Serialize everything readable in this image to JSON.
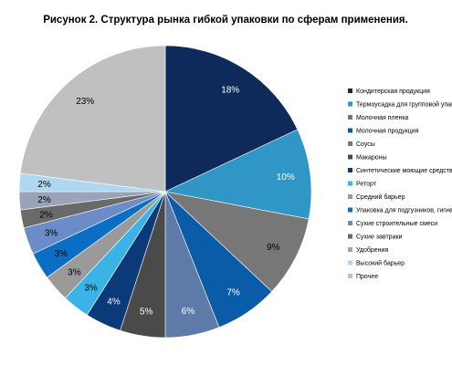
{
  "chart_data": {
    "type": "pie",
    "title": "Рисунок 2. Структура  рынка гибкой упаковки по сферам применения.",
    "categories": [
      "Кондитерская продукция",
      "Термоусадка для групповой упаковки",
      "Молочная пленка",
      "Молочная продукция",
      "Соусы",
      "Макароны",
      "Синтетические моющие средства",
      "Реторт",
      "Средний барьер",
      "Упаковка для подгузников, гигиенических средств",
      "Сухие  строительные смеси",
      "Сухие завтраки",
      "Удобрения",
      "Высокий барьер",
      "Прочее"
    ],
    "legend_labels": [
      "Кондитерская продукция",
      "Термоусадка для групповой упако",
      "Молочная пленка",
      "Молочная продукция",
      "Соусы",
      "Макароны",
      "Синтетические моющие средства",
      "Ретort",
      "Средний барьер",
      "Упаковка для подгузников, гигиен",
      "Сухие  строительные смеси",
      "Сухие завтраки",
      "Удобрения",
      "Высокий барьер",
      "Прочее"
    ],
    "values": [
      18,
      10,
      9,
      7,
      6,
      5,
      4,
      3,
      3,
      3,
      3,
      2,
      2,
      2,
      23
    ],
    "value_labels": [
      "18%",
      "10%",
      "9%",
      "7%",
      "6%",
      "5%",
      "4%",
      "3%",
      "3%",
      "3%",
      "3%",
      "2%",
      "2%",
      "2%",
      "23%"
    ],
    "colors": [
      "#0e2a5b",
      "#2f96c6",
      "#777777",
      "#0a5ca8",
      "#5e7aa9",
      "#4a4a4a",
      "#0b3a78",
      "#3ab4e6",
      "#9a9a9a",
      "#0a6fc4",
      "#6b8cc6",
      "#6a6a6a",
      "#9aa3b8",
      "#aed8f0",
      "#c0c0c0"
    ],
    "label_colors": [
      "#ffffff",
      "#ffffff",
      "#000000",
      "#ffffff",
      "#ffffff",
      "#ffffff",
      "#ffffff",
      "#000000",
      "#000000",
      "#000000",
      "#000000",
      "#000000",
      "#000000",
      "#000000",
      "#000000"
    ],
    "legend_position": "right"
  }
}
